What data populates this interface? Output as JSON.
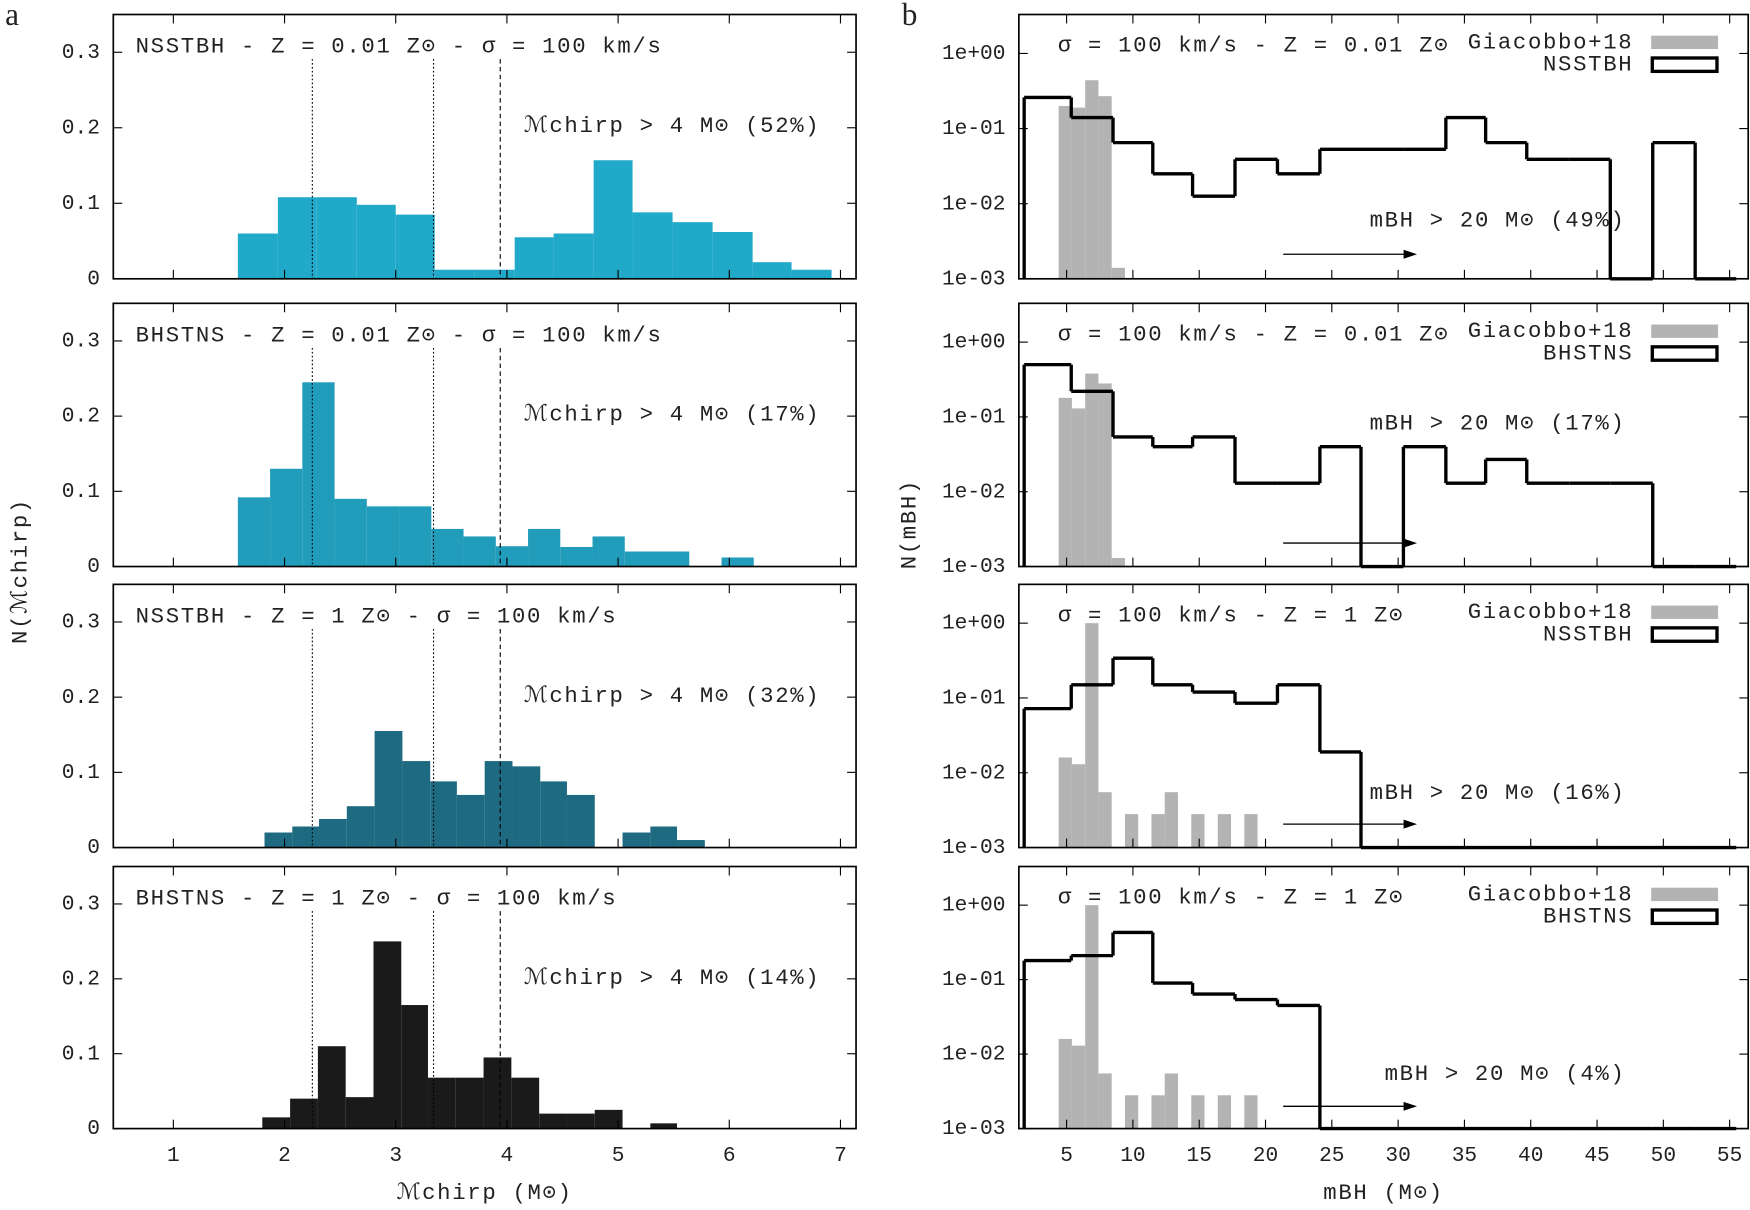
{
  "panel_labels": [
    "a",
    "b"
  ],
  "column_ylabels": [
    "N(ℳchirp)",
    "N(mBH)"
  ],
  "chart_data": [
    {
      "type": "histogram",
      "title": "NSSTBH - Z = 0.01 Z⊙ - σ = 100 km/s",
      "annotation": "ℳchirp > 4 M⊙ (52%)",
      "bins": [
        1.58,
        1.94,
        2.29,
        2.65,
        3.0,
        3.35,
        3.71,
        4.07,
        4.42,
        4.78,
        5.13,
        5.49,
        5.85,
        6.21,
        6.56,
        6.92
      ],
      "values": [
        0.06,
        0.108,
        0.108,
        0.098,
        0.085,
        0.012,
        0.012,
        0.055,
        0.06,
        0.157,
        0.088,
        0.075,
        0.062,
        0.022,
        0.012
      ],
      "color": "#20a9c9",
      "vlines": [
        2.25,
        3.34,
        3.94
      ],
      "xlim": [
        0.46,
        7.14
      ],
      "ylim": [
        0,
        0.35
      ],
      "xticks": [
        1,
        2,
        3,
        4,
        5,
        6,
        7
      ],
      "yticks": [
        0,
        0.1,
        0.2,
        0.3
      ]
    },
    {
      "type": "histogram",
      "title": "BHSTNS - Z = 0.01 Z⊙ - σ = 100 km/s",
      "annotation": "ℳchirp > 4 M⊙ (17%)",
      "bins": [
        1.58,
        1.87,
        2.16,
        2.45,
        2.74,
        3.03,
        3.32,
        3.61,
        3.9,
        4.19,
        4.48,
        4.77,
        5.06,
        5.35,
        5.64,
        5.93,
        6.22
      ],
      "values": [
        0.092,
        0.13,
        0.245,
        0.09,
        0.08,
        0.08,
        0.05,
        0.04,
        0.027,
        0.05,
        0.026,
        0.04,
        0.02,
        0.02,
        0,
        0.012
      ],
      "color": "#219cba",
      "vlines": [
        2.25,
        3.34,
        3.94
      ],
      "xlim": [
        0.46,
        7.14
      ],
      "ylim": [
        0,
        0.35
      ],
      "xticks": [
        1,
        2,
        3,
        4,
        5,
        6,
        7
      ],
      "yticks": [
        0,
        0.1,
        0.2,
        0.3
      ]
    },
    {
      "type": "histogram",
      "title": "NSSTBH - Z = 1 Z⊙ - σ = 100 km/s",
      "annotation": "ℳchirp > 4 M⊙ (32%)",
      "bins": [
        1.82,
        2.07,
        2.31,
        2.56,
        2.81,
        3.06,
        3.31,
        3.55,
        3.8,
        4.05,
        4.3,
        4.54,
        4.79,
        5.04,
        5.29,
        5.53,
        5.78
      ],
      "values": [
        0.02,
        0.028,
        0.038,
        0.055,
        0.155,
        0.115,
        0.088,
        0.07,
        0.115,
        0.108,
        0.088,
        0.07,
        0,
        0.02,
        0.028,
        0.01
      ],
      "color": "#1e6a80",
      "vlines": [
        2.25,
        3.34,
        3.94
      ],
      "xlim": [
        0.46,
        7.14
      ],
      "ylim": [
        0,
        0.35
      ],
      "xticks": [
        1,
        2,
        3,
        4,
        5,
        6,
        7
      ],
      "yticks": [
        0,
        0.1,
        0.2,
        0.3
      ]
    },
    {
      "type": "histogram",
      "title": "BHSTNS - Z = 1 Z⊙ - σ = 100 km/s",
      "annotation": "ℳchirp > 4 M⊙ (14%)",
      "bins": [
        1.8,
        2.05,
        2.3,
        2.55,
        2.8,
        3.05,
        3.29,
        3.54,
        3.79,
        4.04,
        4.29,
        4.54,
        4.79,
        5.04,
        5.29,
        5.53
      ],
      "values": [
        0.015,
        0.04,
        0.11,
        0.042,
        0.25,
        0.165,
        0.068,
        0.068,
        0.095,
        0.068,
        0.02,
        0.02,
        0.025,
        0,
        0.007
      ],
      "color": "#1a1a1a",
      "vlines": [
        2.25,
        3.34,
        3.94
      ],
      "xlabel": "ℳchirp (M⊙)",
      "xlim": [
        0.46,
        7.14
      ],
      "ylim": [
        0,
        0.35
      ],
      "xticks": [
        1,
        2,
        3,
        4,
        5,
        6,
        7
      ],
      "yticks": [
        0,
        0.1,
        0.2,
        0.3
      ]
    },
    {
      "type": "log-histogram",
      "title": "σ = 100 km/s - Z = 0.01 Z⊙",
      "annotation": "mBH > 20 M⊙ (49%)",
      "log_y": true,
      "legend": "upper right",
      "xlim": [
        1.4,
        56.4
      ],
      "ylim": [
        0.001,
        3.3
      ],
      "xticks": [
        5,
        10,
        15,
        20,
        25,
        30,
        35,
        40,
        45,
        50,
        55
      ],
      "yticks": [
        {
          "value": 1,
          "label": "1e+00"
        },
        {
          "value": 0.1,
          "label": "1e-01"
        },
        {
          "value": 0.01,
          "label": "1e-02"
        },
        {
          "value": 0.001,
          "label": "1e-03"
        }
      ],
      "series": [
        {
          "name": "Giacobbo+18",
          "color": "#b3b3b3",
          "bins": [
            4.4,
            5.4,
            6.4,
            7.4,
            8.4,
            9.4
          ],
          "values": [
            0.2,
            0.19,
            0.44,
            0.27,
            0.0014
          ]
        },
        {
          "name": "NSSTBH",
          "color": "#000000",
          "bins": [
            1.8,
            5.35,
            8.5,
            11.5,
            14.5,
            17.7,
            20.9,
            24.1,
            27.2,
            30.4,
            33.6,
            36.6,
            39.7,
            42.9,
            46,
            49.2,
            52.4,
            55.5
          ],
          "values": [
            0.26,
            0.14,
            0.065,
            0.025,
            0.0126,
            0.039,
            0.025,
            0.053,
            0.053,
            0.053,
            0.14,
            0.065,
            0.039,
            0.039,
            0,
            0.065,
            0
          ]
        }
      ]
    },
    {
      "type": "log-histogram",
      "title": "σ = 100 km/s - Z = 0.01 Z⊙",
      "annotation": "mBH > 20 M⊙ (17%)",
      "log_y": true,
      "legend": "upper right",
      "xlim": [
        1.4,
        56.4
      ],
      "ylim": [
        0.001,
        3.3
      ],
      "xticks": [
        5,
        10,
        15,
        20,
        25,
        30,
        35,
        40,
        45,
        50,
        55
      ],
      "yticks": [
        {
          "value": 1,
          "label": "1e+00"
        },
        {
          "value": 0.1,
          "label": "1e-01"
        },
        {
          "value": 0.01,
          "label": "1e-02"
        },
        {
          "value": 0.001,
          "label": "1e-03"
        }
      ],
      "series": [
        {
          "name": "Giacobbo+18",
          "color": "#b3b3b3",
          "bins": [
            4.4,
            5.4,
            6.4,
            7.4,
            8.4,
            9.4
          ],
          "values": [
            0.18,
            0.13,
            0.38,
            0.28,
            0.0013
          ]
        },
        {
          "name": "BHSTNS",
          "color": "#000000",
          "bins": [
            1.8,
            5.35,
            8.5,
            11.5,
            14.5,
            17.7,
            20.9,
            24.1,
            27.2,
            30.4,
            33.6,
            36.6,
            39.7,
            42.9,
            46,
            49.2,
            52.4,
            55.5
          ],
          "values": [
            0.5,
            0.22,
            0.054,
            0.04,
            0.054,
            0.013,
            0.013,
            0.04,
            0,
            0.04,
            0.013,
            0.027,
            0.013,
            0.013,
            0.013,
            0,
            0
          ]
        }
      ]
    },
    {
      "type": "log-histogram",
      "title": "σ = 100 km/s - Z = 1 Z⊙",
      "annotation": "mBH > 20 M⊙ (16%)",
      "log_y": true,
      "legend": "upper right",
      "xlim": [
        1.4,
        56.4
      ],
      "ylim": [
        0.001,
        3.3
      ],
      "xticks": [
        5,
        10,
        15,
        20,
        25,
        30,
        35,
        40,
        45,
        50,
        55
      ],
      "yticks": [
        {
          "value": 1,
          "label": "1e+00"
        },
        {
          "value": 0.1,
          "label": "1e-01"
        },
        {
          "value": 0.01,
          "label": "1e-02"
        },
        {
          "value": 0.001,
          "label": "1e-03"
        }
      ],
      "series": [
        {
          "name": "Giacobbo+18",
          "color": "#b3b3b3",
          "bins": [
            4.4,
            5.4,
            6.4,
            7.4,
            8.4,
            9.4,
            10.4,
            11.4,
            12.4,
            13.4,
            14.4,
            15.4,
            16.4,
            17.4,
            18.4,
            19.4
          ],
          "values": [
            0.016,
            0.013,
            1.0,
            0.0055,
            0,
            0.0028,
            0,
            0.0028,
            0.0055,
            0,
            0.0028,
            0,
            0.0028,
            0,
            0.0028
          ]
        },
        {
          "name": "NSSTBH",
          "color": "#000000",
          "bins": [
            1.8,
            5.35,
            8.5,
            11.5,
            14.5,
            17.7,
            20.9,
            24.1,
            27.2,
            30.4,
            33.6,
            36.6,
            39.7,
            42.9,
            46,
            49.2,
            52.4,
            55.5
          ],
          "values": [
            0.072,
            0.15,
            0.34,
            0.15,
            0.12,
            0.085,
            0.15,
            0.019,
            0,
            0,
            0,
            0,
            0,
            0,
            0,
            0,
            0
          ]
        }
      ]
    },
    {
      "type": "log-histogram",
      "title": "σ = 100 km/s - Z = 1 Z⊙",
      "annotation": "mBH > 20 M⊙ (4%)",
      "log_y": true,
      "legend": "upper right",
      "xlabel": "mBH (M⊙)",
      "xlim": [
        1.4,
        56.4
      ],
      "ylim": [
        0.001,
        3.3
      ],
      "xticks": [
        5,
        10,
        15,
        20,
        25,
        30,
        35,
        40,
        45,
        50,
        55
      ],
      "yticks": [
        {
          "value": 1,
          "label": "1e+00"
        },
        {
          "value": 0.1,
          "label": "1e-01"
        },
        {
          "value": 0.01,
          "label": "1e-02"
        },
        {
          "value": 0.001,
          "label": "1e-03"
        }
      ],
      "series": [
        {
          "name": "Giacobbo+18",
          "color": "#b3b3b3",
          "bins": [
            4.4,
            5.4,
            6.4,
            7.4,
            8.4,
            9.4,
            10.4,
            11.4,
            12.4,
            13.4,
            14.4,
            15.4,
            16.4,
            17.4,
            18.4,
            19.4
          ],
          "values": [
            0.016,
            0.013,
            1.0,
            0.0055,
            0,
            0.0028,
            0,
            0.0028,
            0.0055,
            0,
            0.0028,
            0,
            0.0028,
            0,
            0.0028
          ]
        },
        {
          "name": "BHSTNS",
          "color": "#000000",
          "bins": [
            1.8,
            5.35,
            8.5,
            11.5,
            14.5,
            17.7,
            20.9,
            24.1,
            27.2,
            30.4,
            33.6,
            36.6,
            39.7,
            42.9,
            46,
            49.2,
            52.4,
            55.5
          ],
          "values": [
            0.18,
            0.21,
            0.43,
            0.09,
            0.064,
            0.054,
            0.045,
            0,
            0,
            0,
            0,
            0,
            0,
            0,
            0,
            0,
            0
          ]
        }
      ]
    }
  ]
}
